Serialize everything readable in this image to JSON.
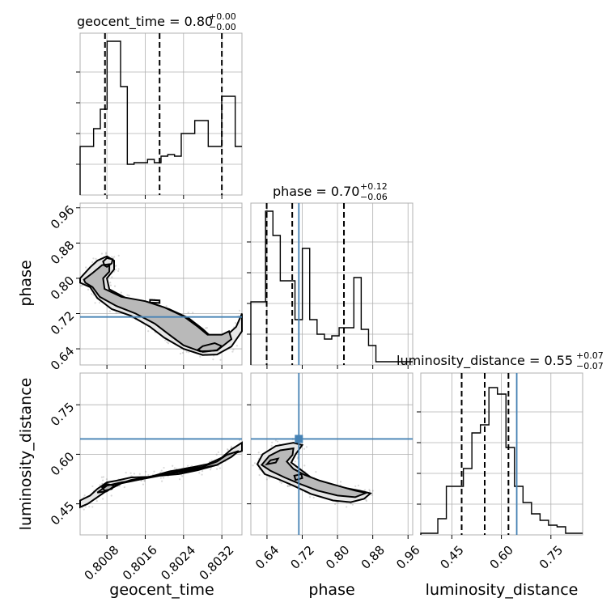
{
  "chart_data": {
    "type": "corner",
    "parameters": [
      "geocent_time",
      "phase",
      "luminosity_distance"
    ],
    "titles": [
      {
        "param": "geocent_time",
        "text": "geocent_time = 0.80",
        "sup": "+0.00",
        "sub": "−0.00"
      },
      {
        "param": "phase",
        "text": "phase = 0.70",
        "sup": "+0.12",
        "sub": "−0.06"
      },
      {
        "param": "luminosity_distance",
        "text": "luminosity_distance = 0.55",
        "sup": "+0.07",
        "sub": "−0.07"
      }
    ],
    "axis_labels": {
      "geocent_time": "geocent_time",
      "phase": "phase",
      "luminosity_distance": "luminosity_distance"
    },
    "ranges": {
      "geocent_time": [
        0.80024,
        0.80362
      ],
      "phase": [
        0.6034,
        0.9706
      ],
      "luminosity_distance": [
        0.3559,
        0.8461
      ]
    },
    "ticks": {
      "geocent_time": [
        0.8008,
        0.8016,
        0.8024,
        0.8032
      ],
      "phase": [
        0.64,
        0.72,
        0.8,
        0.88,
        0.96
      ],
      "luminosity_distance": [
        0.45,
        0.6,
        0.75
      ]
    },
    "tick_labels": {
      "geocent_time": [
        "0.8008",
        "0.8016",
        "0.8024",
        "0.8032"
      ],
      "phase": [
        "0.64",
        "0.72",
        "0.80",
        "0.88",
        "0.96"
      ],
      "luminosity_distance": [
        "0.45",
        "0.60",
        "0.75"
      ]
    },
    "quantiles": {
      "geocent_time": [
        0.80076,
        0.8019,
        0.8032
      ],
      "phase": [
        0.6393,
        0.6973,
        0.8146
      ],
      "luminosity_distance": [
        0.4797,
        0.5495,
        0.6214
      ]
    },
    "truths": {
      "geocent_time": null,
      "phase": 0.7123,
      "luminosity_distance": 0.6465
    },
    "hist_geocent_time": [
      0.3,
      0.3,
      0.41,
      0.53,
      0.95,
      0.95,
      0.67,
      0.19,
      0.2,
      0.2,
      0.22,
      0.2,
      0.24,
      0.25,
      0.24,
      0.38,
      0.38,
      0.46,
      0.46,
      0.3,
      0.3,
      0.61,
      0.61,
      0.3
    ],
    "hist_phase": [
      0.39,
      0.39,
      0.95,
      0.8,
      0.52,
      0.52,
      0.28,
      0.72,
      0.28,
      0.19,
      0.16,
      0.18,
      0.23,
      0.23,
      0.54,
      0.22,
      0.12,
      0.02,
      0.02,
      0.02,
      0.02,
      0.02
    ],
    "hist_luminosity_distance": [
      0.01,
      0.01,
      0.1,
      0.3,
      0.3,
      0.41,
      0.63,
      0.68,
      0.91,
      0.87,
      0.54,
      0.3,
      0.2,
      0.13,
      0.09,
      0.06,
      0.05,
      0.01,
      0.01
    ],
    "contours": {
      "phase_vs_geocent_time": [
        {
          "level": "outer",
          "points": [
            [
              0.80024,
              0.8
            ],
            [
              0.80045,
              0.825
            ],
            [
              0.8006,
              0.84
            ],
            [
              0.8008,
              0.85
            ],
            [
              0.80095,
              0.84
            ],
            [
              0.80095,
              0.82
            ],
            [
              0.8008,
              0.8
            ],
            [
              0.80085,
              0.775
            ],
            [
              0.8012,
              0.755
            ],
            [
              0.8017,
              0.745
            ],
            [
              0.8021,
              0.73
            ],
            [
              0.8025,
              0.71
            ],
            [
              0.8028,
              0.685
            ],
            [
              0.803,
              0.665
            ],
            [
              0.80325,
              0.665
            ],
            [
              0.8035,
              0.69
            ],
            [
              0.80362,
              0.72
            ],
            [
              0.80362,
              0.68
            ],
            [
              0.8034,
              0.645
            ],
            [
              0.8031,
              0.627
            ],
            [
              0.8028,
              0.626
            ],
            [
              0.8024,
              0.64
            ],
            [
              0.802,
              0.665
            ],
            [
              0.8017,
              0.69
            ],
            [
              0.8013,
              0.715
            ],
            [
              0.8009,
              0.73
            ],
            [
              0.8006,
              0.755
            ],
            [
              0.80045,
              0.78
            ],
            [
              0.80024,
              0.79
            ]
          ]
        },
        {
          "level": "middle",
          "points": [
            [
              0.80032,
              0.797
            ],
            [
              0.8005,
              0.812
            ],
            [
              0.8007,
              0.83
            ],
            [
              0.80085,
              0.832
            ],
            [
              0.80085,
              0.815
            ],
            [
              0.80072,
              0.8
            ],
            [
              0.80075,
              0.776
            ],
            [
              0.8011,
              0.758
            ],
            [
              0.8016,
              0.748
            ],
            [
              0.802,
              0.734
            ],
            [
              0.8024,
              0.714
            ],
            [
              0.8027,
              0.69
            ],
            [
              0.8029,
              0.672
            ],
            [
              0.8032,
              0.672
            ],
            [
              0.80335,
              0.68
            ],
            [
              0.8034,
              0.662
            ],
            [
              0.8031,
              0.636
            ],
            [
              0.80275,
              0.634
            ],
            [
              0.8024,
              0.648
            ],
            [
              0.8021,
              0.672
            ],
            [
              0.8018,
              0.697
            ],
            [
              0.8014,
              0.72
            ],
            [
              0.801,
              0.737
            ],
            [
              0.80065,
              0.758
            ],
            [
              0.8005,
              0.78
            ],
            [
              0.80035,
              0.79
            ]
          ]
        },
        {
          "level": "inner",
          "points": [
            [
              0.8028,
              0.633
            ],
            [
              0.8031,
              0.637
            ],
            [
              0.8032,
              0.646
            ],
            [
              0.80305,
              0.653
            ],
            [
              0.8028,
              0.646
            ],
            [
              0.8027,
              0.638
            ]
          ]
        },
        {
          "level": "inner",
          "points": [
            [
              0.8008,
              0.826
            ],
            [
              0.8009,
              0.834
            ],
            [
              0.80092,
              0.843
            ],
            [
              0.8008,
              0.846
            ],
            [
              0.80072,
              0.838
            ],
            [
              0.80075,
              0.829
            ]
          ]
        },
        {
          "level": "inner",
          "points": [
            [
              0.8017,
              0.745
            ],
            [
              0.8019,
              0.744
            ],
            [
              0.8019,
              0.75
            ],
            [
              0.8017,
              0.751
            ]
          ]
        }
      ],
      "luminosity_distance_vs_geocent_time": [
        {
          "level": "outer",
          "points": [
            [
              0.80024,
              0.46
            ],
            [
              0.80045,
              0.475
            ],
            [
              0.8006,
              0.495
            ],
            [
              0.8008,
              0.515
            ],
            [
              0.801,
              0.52
            ],
            [
              0.8013,
              0.53
            ],
            [
              0.8017,
              0.532
            ],
            [
              0.8021,
              0.548
            ],
            [
              0.8025,
              0.558
            ],
            [
              0.8029,
              0.57
            ],
            [
              0.8032,
              0.59
            ],
            [
              0.8034,
              0.615
            ],
            [
              0.80362,
              0.635
            ],
            [
              0.80362,
              0.61
            ],
            [
              0.8034,
              0.6
            ],
            [
              0.8031,
              0.568
            ],
            [
              0.8027,
              0.552
            ],
            [
              0.8023,
              0.54
            ],
            [
              0.8019,
              0.535
            ],
            [
              0.8015,
              0.524
            ],
            [
              0.8011,
              0.512
            ],
            [
              0.8008,
              0.49
            ],
            [
              0.8006,
              0.47
            ],
            [
              0.8004,
              0.45
            ],
            [
              0.80024,
              0.44
            ]
          ]
        },
        {
          "level": "middle",
          "points": [
            [
              0.8006,
              0.484
            ],
            [
              0.8008,
              0.505
            ],
            [
              0.8011,
              0.515
            ],
            [
              0.8015,
              0.524
            ],
            [
              0.802,
              0.54
            ],
            [
              0.8024,
              0.552
            ],
            [
              0.8028,
              0.562
            ],
            [
              0.8031,
              0.578
            ],
            [
              0.8033,
              0.598
            ],
            [
              0.80355,
              0.61
            ],
            [
              0.8034,
              0.592
            ],
            [
              0.8031,
              0.568
            ],
            [
              0.8027,
              0.555
            ],
            [
              0.8023,
              0.545
            ],
            [
              0.8018,
              0.535
            ],
            [
              0.8013,
              0.522
            ],
            [
              0.801,
              0.508
            ],
            [
              0.8008,
              0.488
            ]
          ]
        },
        {
          "level": "inner",
          "points": [
            [
              0.80075,
              0.49
            ],
            [
              0.8009,
              0.495
            ],
            [
              0.80095,
              0.505
            ],
            [
              0.8008,
              0.51
            ],
            [
              0.8007,
              0.5
            ]
          ]
        },
        {
          "level": "inner",
          "points": [
            [
              0.80245,
              0.552
            ],
            [
              0.8026,
              0.556
            ],
            [
              0.80255,
              0.56
            ],
            [
              0.8024,
              0.556
            ]
          ]
        }
      ],
      "luminosity_distance_vs_phase": [
        {
          "level": "outer",
          "points": [
            [
              0.618,
              0.57
            ],
            [
              0.63,
              0.6
            ],
            [
              0.66,
              0.625
            ],
            [
              0.7,
              0.635
            ],
            [
              0.72,
              0.628
            ],
            [
              0.705,
              0.6
            ],
            [
              0.695,
              0.575
            ],
            [
              0.715,
              0.555
            ],
            [
              0.74,
              0.53
            ],
            [
              0.77,
              0.51
            ],
            [
              0.81,
              0.5
            ],
            [
              0.85,
              0.49
            ],
            [
              0.875,
              0.482
            ],
            [
              0.86,
              0.465
            ],
            [
              0.83,
              0.455
            ],
            [
              0.79,
              0.46
            ],
            [
              0.74,
              0.48
            ],
            [
              0.7,
              0.505
            ],
            [
              0.665,
              0.525
            ],
            [
              0.635,
              0.54
            ]
          ]
        },
        {
          "level": "middle",
          "points": [
            [
              0.628,
              0.568
            ],
            [
              0.645,
              0.595
            ],
            [
              0.67,
              0.612
            ],
            [
              0.7,
              0.618
            ],
            [
              0.698,
              0.598
            ],
            [
              0.685,
              0.578
            ],
            [
              0.7,
              0.556
            ],
            [
              0.725,
              0.538
            ],
            [
              0.76,
              0.52
            ],
            [
              0.8,
              0.505
            ],
            [
              0.84,
              0.49
            ],
            [
              0.865,
              0.483
            ],
            [
              0.84,
              0.47
            ],
            [
              0.8,
              0.475
            ],
            [
              0.755,
              0.49
            ],
            [
              0.715,
              0.51
            ],
            [
              0.68,
              0.53
            ],
            [
              0.648,
              0.55
            ]
          ]
        },
        {
          "level": "inner",
          "points": [
            [
              0.705,
              0.522
            ],
            [
              0.72,
              0.528
            ],
            [
              0.718,
              0.54
            ],
            [
              0.702,
              0.535
            ]
          ]
        },
        {
          "level": "inner",
          "points": [
            [
              0.64,
              0.57
            ],
            [
              0.66,
              0.575
            ],
            [
              0.665,
              0.587
            ],
            [
              0.648,
              0.582
            ]
          ]
        }
      ]
    },
    "grid": true
  }
}
